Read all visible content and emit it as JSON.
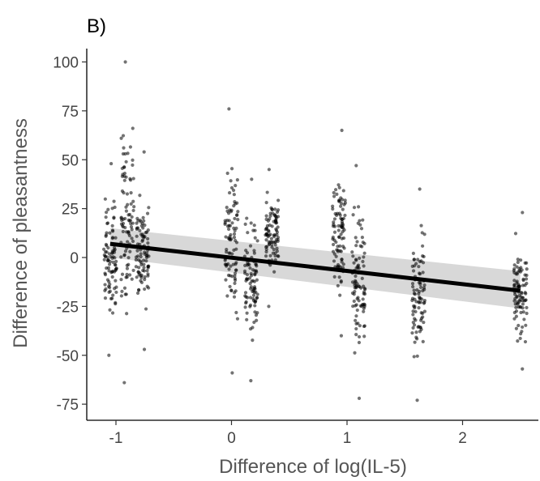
{
  "chart_data": {
    "type": "scatter",
    "panel_label": "B)",
    "title": "",
    "xlabel": "Difference of log(IL-5)",
    "ylabel": "Difference of pleasantness",
    "xlim": [
      -1.25,
      2.7
    ],
    "ylim": [
      -80,
      105
    ],
    "x_ticks": [
      -1,
      0,
      1,
      2
    ],
    "x_tick_labels": [
      "-1",
      "0",
      "1",
      "2"
    ],
    "y_ticks": [
      100,
      75,
      50,
      25,
      0,
      -25,
      -50,
      -75
    ],
    "y_tick_labels": [
      "100",
      "75",
      "50",
      "25",
      "0",
      "-25",
      "-50",
      "-75"
    ],
    "grid": false,
    "legend": "none",
    "regression": {
      "x": [
        -1.05,
        2.5
      ],
      "y": [
        7,
        -17
      ],
      "ci_lower": [
        0,
        -26
      ],
      "ci_upper": [
        15,
        -7
      ]
    },
    "point_columns": [
      {
        "x": -1.05,
        "y_min": -50,
        "y_max": 48
      },
      {
        "x": -0.9,
        "y_min": -64,
        "y_max": 100
      },
      {
        "x": -0.77,
        "y_min": -47,
        "y_max": 54
      },
      {
        "x": 0.0,
        "y_min": -59,
        "y_max": 76
      },
      {
        "x": 0.17,
        "y_min": -63,
        "y_max": 40
      },
      {
        "x": 0.35,
        "y_min": -25,
        "y_max": 45
      },
      {
        "x": 0.93,
        "y_min": -40,
        "y_max": 65
      },
      {
        "x": 1.1,
        "y_min": -72,
        "y_max": 47
      },
      {
        "x": 1.62,
        "y_min": -73,
        "y_max": 35
      },
      {
        "x": 2.5,
        "y_min": -57,
        "y_max": 23
      }
    ],
    "colors": {
      "points": "#000000",
      "line": "#000000",
      "ribbon": "#c8c8c8",
      "axis": "#000000"
    }
  }
}
